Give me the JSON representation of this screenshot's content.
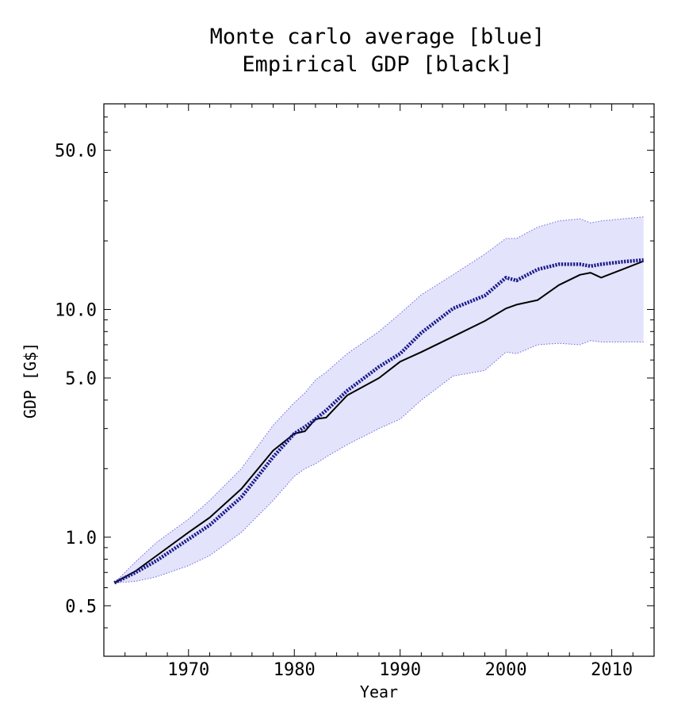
{
  "chart_data": {
    "type": "line",
    "title_lines": [
      "Monte carlo average [blue]",
      "Empirical GDP [black]"
    ],
    "xlabel": "Year",
    "ylabel": "GDP [G$]",
    "y_scale": "log",
    "xlim": [
      1962,
      2014
    ],
    "ylim": [
      0.3,
      80
    ],
    "x_ticks": [
      {
        "value": 1970,
        "label": "1970"
      },
      {
        "value": 1980,
        "label": "1980"
      },
      {
        "value": 1990,
        "label": "1990"
      },
      {
        "value": 2000,
        "label": "2000"
      },
      {
        "value": 2010,
        "label": "2010"
      }
    ],
    "y_ticks": [
      {
        "value": 0.5,
        "label": "0.5"
      },
      {
        "value": 1.0,
        "label": "1.0"
      },
      {
        "value": 5.0,
        "label": "5.0"
      },
      {
        "value": 10.0,
        "label": "10.0"
      },
      {
        "value": 50.0,
        "label": "50.0"
      }
    ],
    "colors": {
      "band_fill": "#e3e3fb",
      "band_edge": "#6a6ae6",
      "monte_carlo": "#1a1a8c",
      "empirical": "#000000"
    },
    "x": [
      1963,
      1965,
      1967,
      1970,
      1972,
      1975,
      1978,
      1980,
      1981,
      1982,
      1983,
      1985,
      1988,
      1990,
      1992,
      1995,
      1998,
      2000,
      2001,
      2003,
      2005,
      2007,
      2008,
      2009,
      2011,
      2013
    ],
    "band_upper": [
      0.63,
      0.78,
      0.95,
      1.2,
      1.45,
      2.0,
      3.1,
      3.9,
      4.3,
      4.9,
      5.3,
      6.4,
      8.0,
      9.6,
      11.6,
      14.2,
      17.5,
      20.5,
      20.5,
      23.0,
      24.5,
      25.0,
      24.0,
      24.5,
      25.0,
      25.5
    ],
    "band_lower": [
      0.63,
      0.64,
      0.67,
      0.75,
      0.83,
      1.05,
      1.45,
      1.85,
      2.0,
      2.1,
      2.25,
      2.55,
      3.0,
      3.3,
      4.0,
      5.1,
      5.4,
      6.5,
      6.4,
      7.0,
      7.1,
      7.0,
      7.3,
      7.2,
      7.2,
      7.2
    ],
    "series": [
      {
        "name": "Monte carlo average [blue]",
        "values": [
          0.63,
          0.7,
          0.79,
          0.98,
          1.13,
          1.5,
          2.25,
          2.85,
          3.05,
          3.3,
          3.6,
          4.4,
          5.6,
          6.4,
          7.9,
          10.1,
          11.5,
          13.8,
          13.4,
          15.0,
          15.8,
          15.8,
          15.5,
          15.8,
          16.2,
          16.5
        ]
      },
      {
        "name": "Empirical GDP [black]",
        "values": [
          0.63,
          0.71,
          0.83,
          1.05,
          1.22,
          1.63,
          2.4,
          2.85,
          2.92,
          3.3,
          3.35,
          4.2,
          5.0,
          5.9,
          6.5,
          7.6,
          8.9,
          10.1,
          10.5,
          11.0,
          12.8,
          14.2,
          14.5,
          13.8,
          15.0,
          16.3
        ]
      }
    ]
  }
}
